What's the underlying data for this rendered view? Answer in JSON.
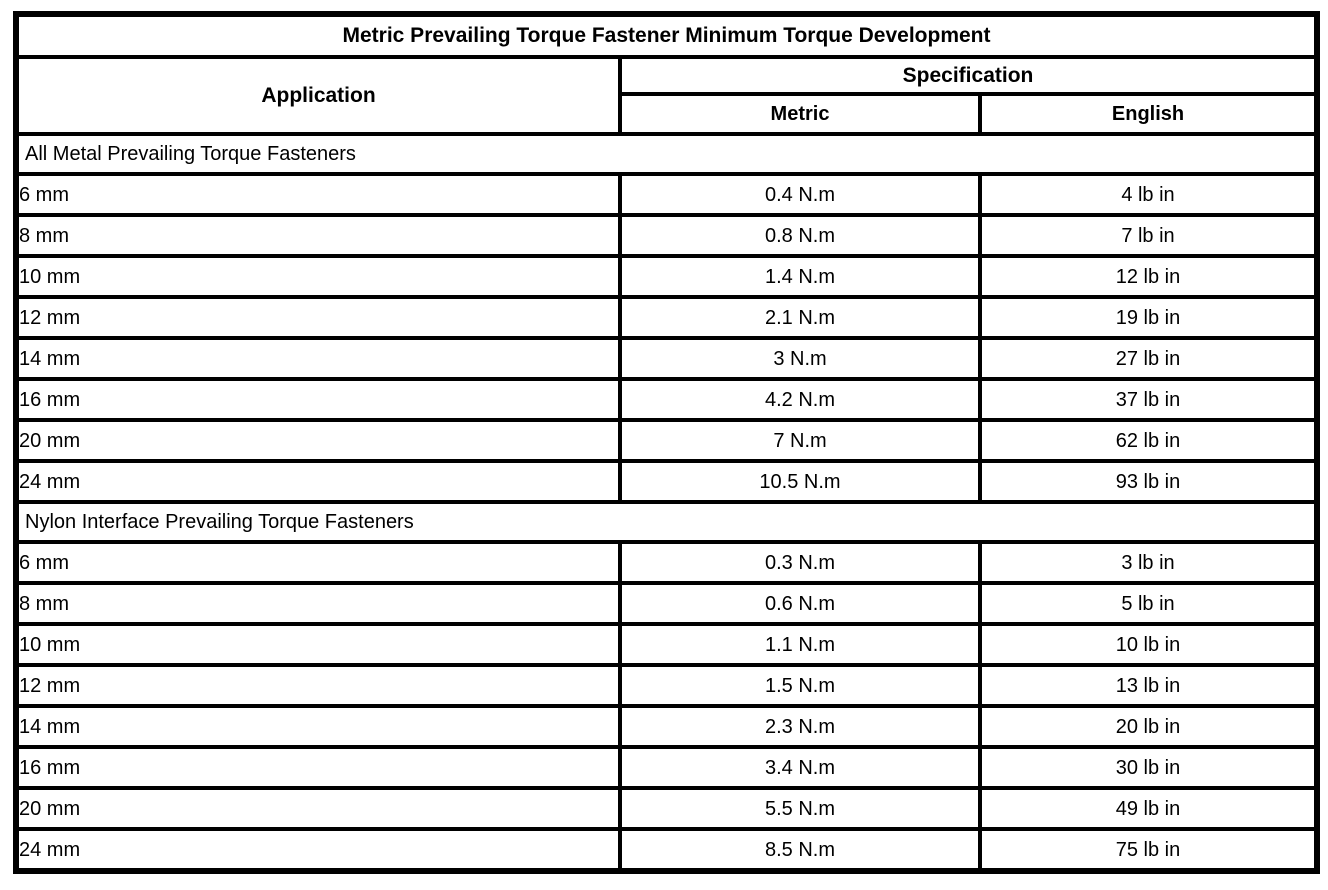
{
  "table": {
    "title": "Metric Prevailing Torque Fastener Minimum Torque Development",
    "header": {
      "application": "Application",
      "specification": "Specification",
      "metric": "Metric",
      "english": "English"
    },
    "sections": [
      {
        "header": "All Metal Prevailing Torque Fasteners",
        "rows": [
          {
            "application": "6 mm",
            "metric": "0.4 N.m",
            "english": "4 lb in"
          },
          {
            "application": "8 mm",
            "metric": "0.8 N.m",
            "english": "7 lb in"
          },
          {
            "application": "10 mm",
            "metric": "1.4 N.m",
            "english": "12 lb in"
          },
          {
            "application": "12 mm",
            "metric": "2.1 N.m",
            "english": "19 lb in"
          },
          {
            "application": "14 mm",
            "metric": "3 N.m",
            "english": "27 lb in"
          },
          {
            "application": "16 mm",
            "metric": "4.2 N.m",
            "english": "37 lb in"
          },
          {
            "application": "20 mm",
            "metric": "7 N.m",
            "english": "62 lb in"
          },
          {
            "application": "24 mm",
            "metric": "10.5 N.m",
            "english": "93 lb in"
          }
        ]
      },
      {
        "header": "Nylon Interface Prevailing Torque Fasteners",
        "rows": [
          {
            "application": "6 mm",
            "metric": "0.3 N.m",
            "english": "3 lb in"
          },
          {
            "application": "8 mm",
            "metric": "0.6 N.m",
            "english": "5 lb in"
          },
          {
            "application": "10 mm",
            "metric": "1.1 N.m",
            "english": "10 lb in"
          },
          {
            "application": "12 mm",
            "metric": "1.5 N.m",
            "english": "13 lb in"
          },
          {
            "application": "14 mm",
            "metric": "2.3 N.m",
            "english": "20 lb in"
          },
          {
            "application": "16 mm",
            "metric": "3.4 N.m",
            "english": "30 lb in"
          },
          {
            "application": "20 mm",
            "metric": "5.5 N.m",
            "english": "49 lb in"
          },
          {
            "application": "24 mm",
            "metric": "8.5 N.m",
            "english": "75 lb in"
          }
        ]
      }
    ]
  }
}
